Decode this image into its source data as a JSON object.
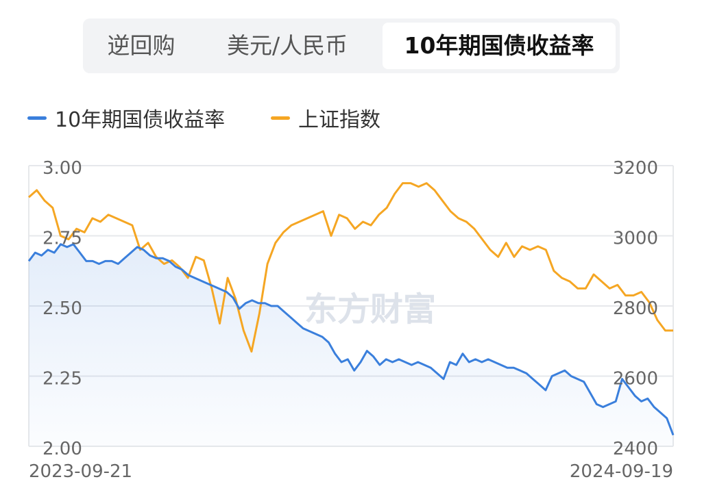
{
  "tabs": [
    {
      "label": "逆回购",
      "active": false
    },
    {
      "label": "美元/人民币",
      "active": false
    },
    {
      "label": "10年期国债收益率",
      "active": true
    }
  ],
  "legend": [
    {
      "label": "10年期国债收益率",
      "color": "#3a7fdc"
    },
    {
      "label": "上证指数",
      "color": "#f5a623"
    }
  ],
  "watermark": "东方财富",
  "colors": {
    "yield_line": "#3a7fdc",
    "index_line": "#f5a623",
    "grid": "#e6e8eb",
    "tick_text": "#666666"
  },
  "chart_data": {
    "type": "line",
    "x_start": "2023-09-21",
    "x_end": "2024-09-19",
    "x_tick_labels": [
      "2023-09-21",
      "2024-09-19"
    ],
    "grid": true,
    "y_left": {
      "ylim": [
        2.0,
        3.0
      ],
      "ticks": [
        "3.00",
        "2.75",
        "2.50",
        "2.25",
        "2.00"
      ]
    },
    "y_right": {
      "ylim": [
        2400,
        3200
      ],
      "ticks": [
        "3200",
        "3000",
        "2800",
        "2600",
        "2400"
      ]
    },
    "series": [
      {
        "name": "10年期国债收益率",
        "axis": "left",
        "area_fill": true,
        "values": [
          2.66,
          2.69,
          2.68,
          2.7,
          2.69,
          2.72,
          2.71,
          2.72,
          2.69,
          2.66,
          2.66,
          2.65,
          2.66,
          2.66,
          2.65,
          2.67,
          2.69,
          2.71,
          2.7,
          2.68,
          2.67,
          2.67,
          2.66,
          2.64,
          2.63,
          2.61,
          2.6,
          2.59,
          2.58,
          2.57,
          2.56,
          2.55,
          2.53,
          2.49,
          2.51,
          2.52,
          2.51,
          2.51,
          2.5,
          2.5,
          2.48,
          2.46,
          2.44,
          2.42,
          2.41,
          2.4,
          2.39,
          2.37,
          2.33,
          2.3,
          2.31,
          2.27,
          2.3,
          2.34,
          2.32,
          2.29,
          2.31,
          2.3,
          2.31,
          2.3,
          2.29,
          2.3,
          2.29,
          2.28,
          2.26,
          2.24,
          2.3,
          2.29,
          2.33,
          2.3,
          2.31,
          2.3,
          2.31,
          2.3,
          2.29,
          2.28,
          2.28,
          2.27,
          2.26,
          2.24,
          2.22,
          2.2,
          2.25,
          2.26,
          2.27,
          2.25,
          2.24,
          2.23,
          2.19,
          2.15,
          2.14,
          2.15,
          2.16,
          2.24,
          2.21,
          2.18,
          2.16,
          2.17,
          2.14,
          2.12,
          2.1,
          2.04
        ]
      },
      {
        "name": "上证指数",
        "axis": "right",
        "values": [
          3110,
          3130,
          3100,
          3080,
          3000,
          2990,
          3020,
          3010,
          3050,
          3040,
          3060,
          3050,
          3040,
          3030,
          2960,
          2980,
          2940,
          2920,
          2930,
          2910,
          2880,
          2940,
          2930,
          2850,
          2750,
          2880,
          2820,
          2730,
          2670,
          2780,
          2920,
          2980,
          3010,
          3030,
          3040,
          3050,
          3060,
          3070,
          3000,
          3060,
          3050,
          3020,
          3040,
          3030,
          3060,
          3080,
          3120,
          3150,
          3150,
          3140,
          3150,
          3130,
          3100,
          3070,
          3050,
          3040,
          3020,
          2990,
          2960,
          2940,
          2980,
          2940,
          2970,
          2960,
          2970,
          2960,
          2900,
          2880,
          2870,
          2850,
          2850,
          2890,
          2870,
          2850,
          2860,
          2830,
          2830,
          2840,
          2810,
          2760,
          2730,
          2730
        ]
      }
    ]
  }
}
